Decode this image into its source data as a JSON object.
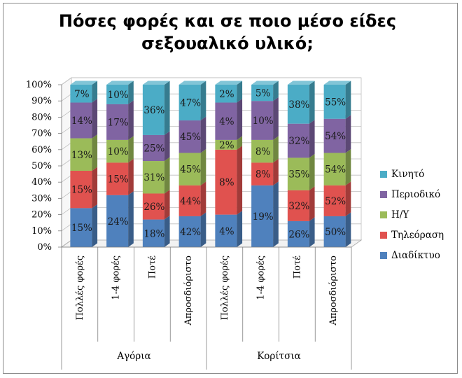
{
  "title": {
    "line1": "Πόσες φορές και σε ποιο μέσο είδες",
    "line2": "σεξουαλικό υλικό;"
  },
  "chart_data": {
    "type": "bar",
    "stacked": true,
    "percent_stacked": true,
    "title": "Πόσες φορές και σε ποιο μέσο είδες σεξουαλικό υλικό;",
    "ylim": [
      0,
      100
    ],
    "y_ticks": [
      "0%",
      "10%",
      "20%",
      "30%",
      "40%",
      "50%",
      "60%",
      "70%",
      "80%",
      "90%",
      "100%"
    ],
    "categories": [
      "Πολλές φορές",
      "1-4 φορές",
      "Ποτέ",
      "Απροσδιόριστο",
      "Πολλές φορές",
      "1-4 φορές",
      "Ποτέ",
      "Απροσδιόριστο"
    ],
    "groups": [
      {
        "label": "Αγόρια",
        "categories": [
          0,
          1,
          2,
          3
        ]
      },
      {
        "label": "Κορίτσια",
        "categories": [
          4,
          5,
          6,
          7
        ]
      }
    ],
    "series": [
      {
        "name": "Διαδίκτυο",
        "color": "#4f81bd",
        "heights": [
          24,
          32,
          17,
          19,
          20,
          38,
          16,
          19
        ],
        "labels": [
          "15%",
          "24%",
          "18%",
          "42%",
          "4%",
          "19%",
          "26%",
          "50%"
        ]
      },
      {
        "name": "Τηλεόραση",
        "color": "#e0524f",
        "heights": [
          23,
          20,
          16,
          19,
          40,
          14,
          19,
          19
        ],
        "labels": [
          "15%",
          "15%",
          "26%",
          "44%",
          "8%",
          "8%",
          "32%",
          "52%"
        ]
      },
      {
        "name": "Η/Υ",
        "color": "#9bbb59",
        "heights": [
          20,
          14,
          20,
          20,
          6,
          14,
          20,
          20
        ],
        "labels": [
          "13%",
          "10%",
          "31%",
          "45%",
          "2%",
          "8%",
          "35%",
          "54%"
        ]
      },
      {
        "name": "Περιοδικό",
        "color": "#8064a2",
        "heights": [
          22,
          22,
          16,
          20,
          23,
          24,
          21,
          21
        ],
        "labels": [
          "14%",
          "17%",
          "25%",
          "45%",
          "4%",
          "10%",
          "32%",
          "54%"
        ]
      },
      {
        "name": "Κινητό",
        "color": "#4bacc6",
        "heights": [
          11,
          12,
          31,
          22,
          11,
          10,
          24,
          21
        ],
        "labels": [
          "7%",
          "10%",
          "36%",
          "47%",
          "2%",
          "5%",
          "38%",
          "55%"
        ]
      }
    ],
    "legend": {
      "position": "right",
      "order": [
        "Κινητό",
        "Περιοδικό",
        "Η/Υ",
        "Τηλεόραση",
        "Διαδίκτυο"
      ]
    },
    "grid": true
  }
}
